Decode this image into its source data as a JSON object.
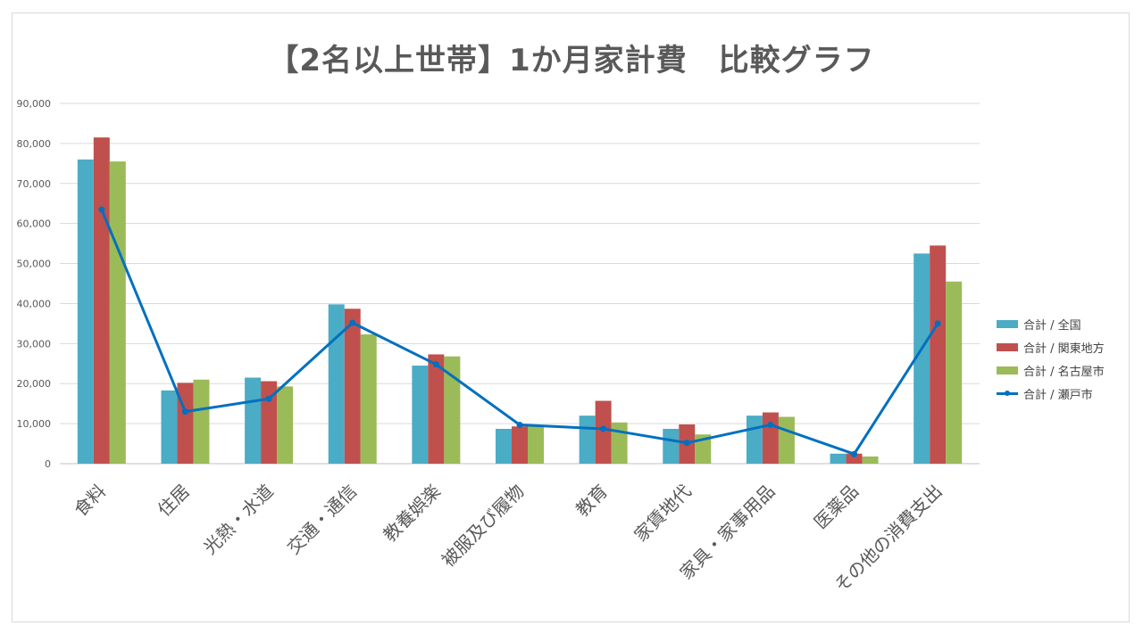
{
  "chart_data": {
    "type": "bar",
    "title": "【2名以上世帯】1か月家計費　比較グラフ",
    "categories": [
      "食料",
      "住居",
      "光熱・水道",
      "交通・通信",
      "教養娯楽",
      "被服及び履物",
      "教育",
      "家賃地代",
      "家具・家事用品",
      "医薬品",
      "その他の消費支出"
    ],
    "y_ticks": [
      "0",
      "10,000",
      "20,000",
      "30,000",
      "40,000",
      "50,000",
      "60,000",
      "70,000",
      "80,000",
      "90,000"
    ],
    "ylim": [
      0,
      90000
    ],
    "grid": true,
    "legend_position": "right",
    "series": [
      {
        "name": "合計 / 全国",
        "kind": "bar",
        "color": "#4bacc6",
        "values": [
          76000,
          18300,
          21500,
          39800,
          24500,
          8700,
          12000,
          8700,
          12000,
          2500,
          52500
        ]
      },
      {
        "name": "合計 / 関東地方",
        "kind": "bar",
        "color": "#c0504d",
        "values": [
          81500,
          20200,
          20600,
          38700,
          27300,
          9300,
          15700,
          9800,
          12800,
          2500,
          54500
        ]
      },
      {
        "name": "合計 / 名古屋市",
        "kind": "bar",
        "color": "#9bbb59",
        "values": [
          75500,
          21000,
          19300,
          32300,
          26800,
          9500,
          10300,
          7300,
          11700,
          1800,
          45500
        ]
      },
      {
        "name": "合計 / 瀬戸市",
        "kind": "line",
        "color": "#0070c0",
        "values": [
          63500,
          13000,
          16200,
          35200,
          24800,
          9700,
          8700,
          5200,
          9700,
          2400,
          35000
        ]
      }
    ]
  }
}
